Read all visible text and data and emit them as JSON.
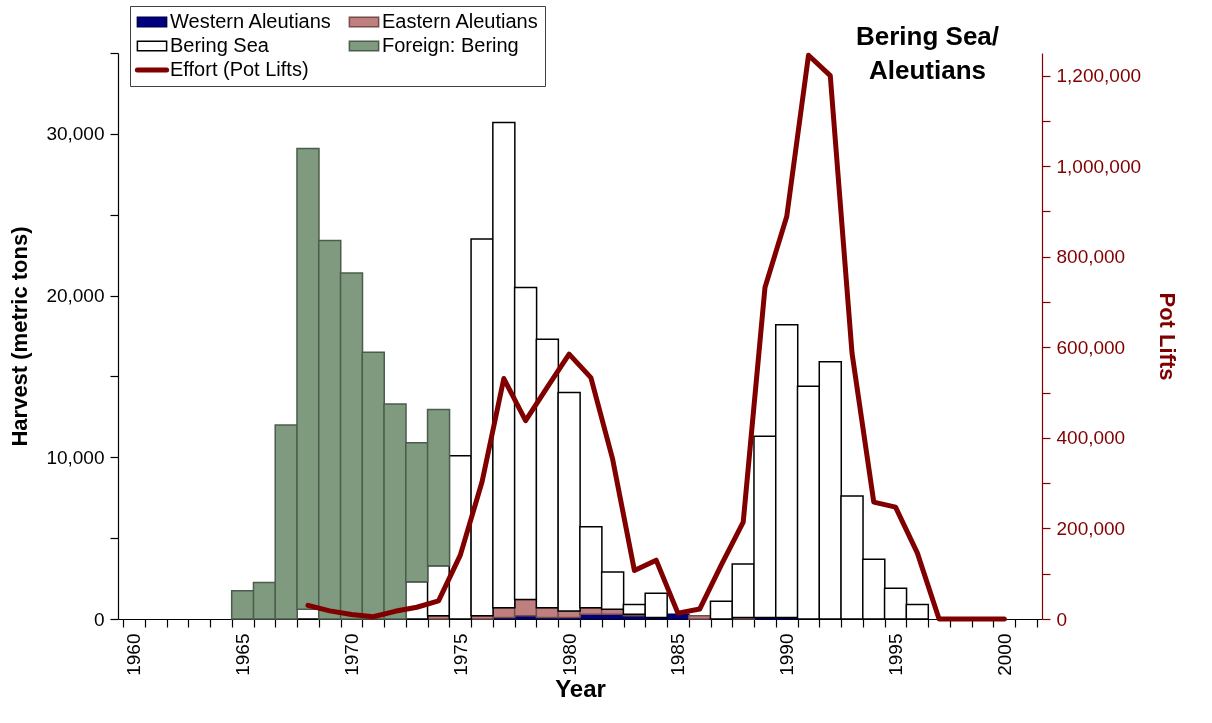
{
  "chart_data": {
    "type": "bar",
    "title": "Bering Sea/\nAleutians",
    "xlabel": "Year",
    "ylabel": "Harvest (metric tons)",
    "y2label": "Pot Lifts",
    "x": [
      1965,
      1966,
      1967,
      1968,
      1969,
      1970,
      1971,
      1972,
      1973,
      1974,
      1975,
      1976,
      1977,
      1978,
      1979,
      1980,
      1981,
      1982,
      1983,
      1984,
      1985,
      1986,
      1987,
      1988,
      1989,
      1990,
      1991,
      1992,
      1993,
      1994,
      1995,
      1996
    ],
    "stacked": true,
    "series": [
      {
        "name": "Western Aleutians",
        "color": "#00007f",
        "values": [
          null,
          null,
          null,
          null,
          null,
          null,
          null,
          null,
          null,
          null,
          null,
          null,
          100,
          200,
          100,
          100,
          300,
          300,
          200,
          100,
          300,
          null,
          null,
          null,
          100,
          100,
          null,
          null,
          null,
          null,
          null,
          null
        ]
      },
      {
        "name": "Eastern Aleutians",
        "color": "#c07f7f",
        "values": [
          null,
          null,
          null,
          null,
          null,
          null,
          null,
          null,
          null,
          200,
          null,
          200,
          600,
          1000,
          600,
          400,
          400,
          300,
          100,
          null,
          null,
          200,
          null,
          100,
          null,
          null,
          null,
          null,
          null,
          null,
          null,
          null
        ]
      },
      {
        "name": "Bering Sea",
        "color": "#ffffff",
        "values": [
          null,
          null,
          null,
          600,
          null,
          null,
          null,
          null,
          2300,
          3100,
          10100,
          23300,
          30000,
          19300,
          16600,
          13500,
          5000,
          2300,
          600,
          1500,
          null,
          null,
          1100,
          3300,
          11200,
          18100,
          14400,
          15900,
          7600,
          3700,
          1900,
          900
        ]
      },
      {
        "name": "Foreign: Bering",
        "color": "#7f9a7f",
        "values": [
          1750,
          2250,
          12000,
          28500,
          23400,
          21400,
          16500,
          13300,
          8600,
          9650,
          null,
          null,
          null,
          null,
          null,
          null,
          null,
          null,
          null,
          null,
          null,
          null,
          null,
          null,
          null,
          null,
          null,
          null,
          null,
          null,
          null,
          null
        ]
      },
      {
        "name": "Effort (Pot Lifts)",
        "type": "line",
        "axis": "y2",
        "color": "#800000",
        "x": [
          1968,
          1969,
          1970,
          1971,
          1972,
          1973,
          1974,
          1975,
          1976,
          1977,
          1978,
          1979,
          1980,
          1981,
          1982,
          1983,
          1984,
          1985,
          1986,
          1987,
          1988,
          1989,
          1990,
          1991,
          1992,
          1993,
          1994,
          1995,
          1996,
          1997,
          1998,
          1999,
          2000
        ],
        "values": [
          30000,
          18000,
          10000,
          5000,
          17000,
          26000,
          40000,
          141000,
          303000,
          531000,
          438000,
          512000,
          585000,
          533000,
          353000,
          107000,
          130000,
          13000,
          22000,
          120000,
          214000,
          732000,
          889000,
          1245000,
          1200000,
          587000,
          258000,
          247000,
          146000,
          0,
          0,
          0,
          0
        ]
      }
    ],
    "xlim": [
      1959.5,
      2001.5
    ],
    "xticks": [
      {
        "value": 1959.5,
        "label": null
      },
      1960,
      {
        "value": 1960.5,
        "label": null
      },
      {
        "value": 1961.5,
        "label": null
      },
      {
        "value": 1962.5,
        "label": null
      },
      {
        "value": 1963.5,
        "label": null
      },
      {
        "value": 1964.5,
        "label": null
      },
      1965,
      {
        "value": 1965.5,
        "label": null
      },
      {
        "value": 1966.5,
        "label": null
      },
      {
        "value": 1967.5,
        "label": null
      },
      {
        "value": 1968.5,
        "label": null
      },
      {
        "value": 1969.5,
        "label": null
      },
      1970,
      {
        "value": 1970.5,
        "label": null
      },
      {
        "value": 1971.5,
        "label": null
      },
      {
        "value": 1972.5,
        "label": null
      },
      {
        "value": 1973.5,
        "label": null
      },
      {
        "value": 1974.5,
        "label": null
      },
      1975,
      {
        "value": 1975.5,
        "label": null
      },
      {
        "value": 1976.5,
        "label": null
      },
      {
        "value": 1977.5,
        "label": null
      },
      {
        "value": 1978.5,
        "label": null
      },
      {
        "value": 1979.5,
        "label": null
      },
      1980,
      {
        "value": 1980.5,
        "label": null
      },
      {
        "value": 1981.5,
        "label": null
      },
      {
        "value": 1982.5,
        "label": null
      },
      {
        "value": 1983.5,
        "label": null
      },
      {
        "value": 1984.5,
        "label": null
      },
      1985,
      {
        "value": 1985.5,
        "label": null
      },
      {
        "value": 1986.5,
        "label": null
      },
      {
        "value": 1987.5,
        "label": null
      },
      {
        "value": 1988.5,
        "label": null
      },
      {
        "value": 1989.5,
        "label": null
      },
      1990,
      {
        "value": 1990.5,
        "label": null
      },
      {
        "value": 1991.5,
        "label": null
      },
      {
        "value": 1992.5,
        "label": null
      },
      {
        "value": 1993.5,
        "label": null
      },
      {
        "value": 1994.5,
        "label": null
      },
      1995,
      {
        "value": 1995.5,
        "label": null
      },
      {
        "value": 1996.5,
        "label": null
      },
      {
        "value": 1997.5,
        "label": null
      },
      {
        "value": 1998.5,
        "label": null
      },
      {
        "value": 1999.5,
        "label": null
      },
      2000,
      {
        "value": 2000.5,
        "label": null
      },
      {
        "value": 2001.5,
        "label": null
      }
    ],
    "ylim": [
      0,
      35000
    ],
    "yticks": [
      {
        "value": 0,
        "label": "0"
      },
      {
        "value": 5000,
        "label": null
      },
      {
        "value": 10000,
        "label": "10,000"
      },
      {
        "value": 15000,
        "label": null
      },
      {
        "value": 20000,
        "label": "20,000"
      },
      {
        "value": 25000,
        "label": null
      },
      {
        "value": 30000,
        "label": "30,000"
      },
      {
        "value": 35000,
        "label": null
      }
    ],
    "y2lim": [
      0,
      1250000
    ],
    "y2ticks": [
      {
        "value": 0,
        "label": "0"
      },
      {
        "value": 100000,
        "label": null
      },
      {
        "value": 200000,
        "label": "200,000"
      },
      {
        "value": 300000,
        "label": null
      },
      {
        "value": 400000,
        "label": "400,000"
      },
      {
        "value": 500000,
        "label": null
      },
      {
        "value": 600000,
        "label": "600,000"
      },
      {
        "value": 700000,
        "label": null
      },
      {
        "value": 800000,
        "label": "800,000"
      },
      {
        "value": 900000,
        "label": null
      },
      {
        "value": 1000000,
        "label": "1,000,000"
      },
      {
        "value": 1100000,
        "label": null
      },
      {
        "value": 1200000,
        "label": "1,200,000"
      }
    ],
    "grid": false,
    "legend": "top left",
    "line_style": "solid"
  }
}
